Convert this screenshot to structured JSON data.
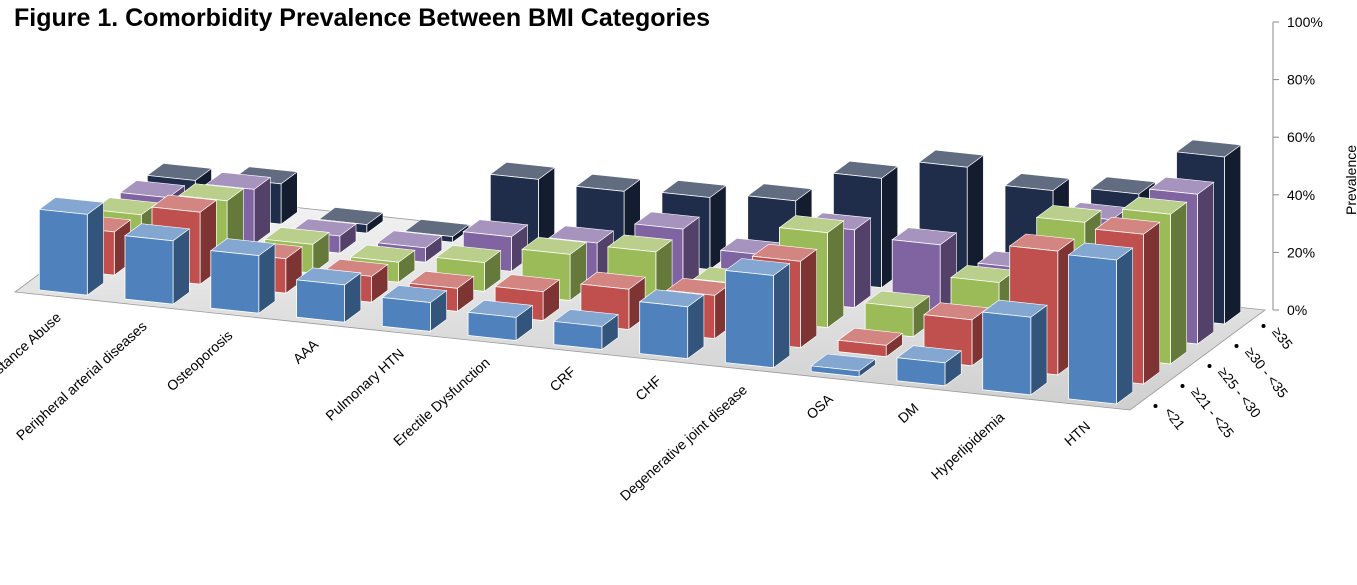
{
  "chart_data": {
    "type": "bar3d",
    "title": "Figure 1. Comorbidity Prevalence Between BMI Categories",
    "y_label": "Prevalence",
    "categories": [
      "Substance Abuse",
      "Peripheral arterial diseases",
      "Osteoporosis",
      "AAA",
      "Pulmonary HTN",
      "Erectile Dysfunction",
      "CRF",
      "CHF",
      "Degenerative joint disease",
      "OSA",
      "DM",
      "Hyperlipidemia",
      "HTN"
    ],
    "series": [
      {
        "name": "<21",
        "color": "#4f81bd",
        "values": [
          28,
          22,
          20,
          13,
          10,
          8,
          8,
          18,
          32,
          2,
          8,
          27,
          50
        ]
      },
      {
        "name": "≥21 - <25",
        "color": "#c0504d",
        "values": [
          15,
          25,
          12,
          9,
          8,
          10,
          14,
          15,
          30,
          4,
          16,
          43,
          52
        ]
      },
      {
        "name": "≥25 - <30",
        "color": "#9bbb59",
        "values": [
          14,
          22,
          10,
          7,
          10,
          16,
          20,
          12,
          33,
          10,
          22,
          46,
          52
        ]
      },
      {
        "name": "≥30 - <35",
        "color": "#8064a2",
        "values": [
          13,
          19,
          6,
          5,
          12,
          13,
          21,
          15,
          27,
          25,
          20,
          40,
          52
        ]
      },
      {
        "name": "≥35",
        "color": "#1f2d4a",
        "values": [
          12,
          14,
          3,
          2,
          25,
          24,
          25,
          27,
          38,
          45,
          40,
          42,
          58
        ]
      }
    ],
    "ylim": [
      0,
      100
    ],
    "yticks": [
      {
        "value": 0,
        "label": "0%"
      },
      {
        "value": 20,
        "label": "20%"
      },
      {
        "value": 40,
        "label": "40%"
      },
      {
        "value": 60,
        "label": "60%"
      },
      {
        "value": 80,
        "label": "80%"
      },
      {
        "value": 100,
        "label": "100%"
      }
    ]
  }
}
